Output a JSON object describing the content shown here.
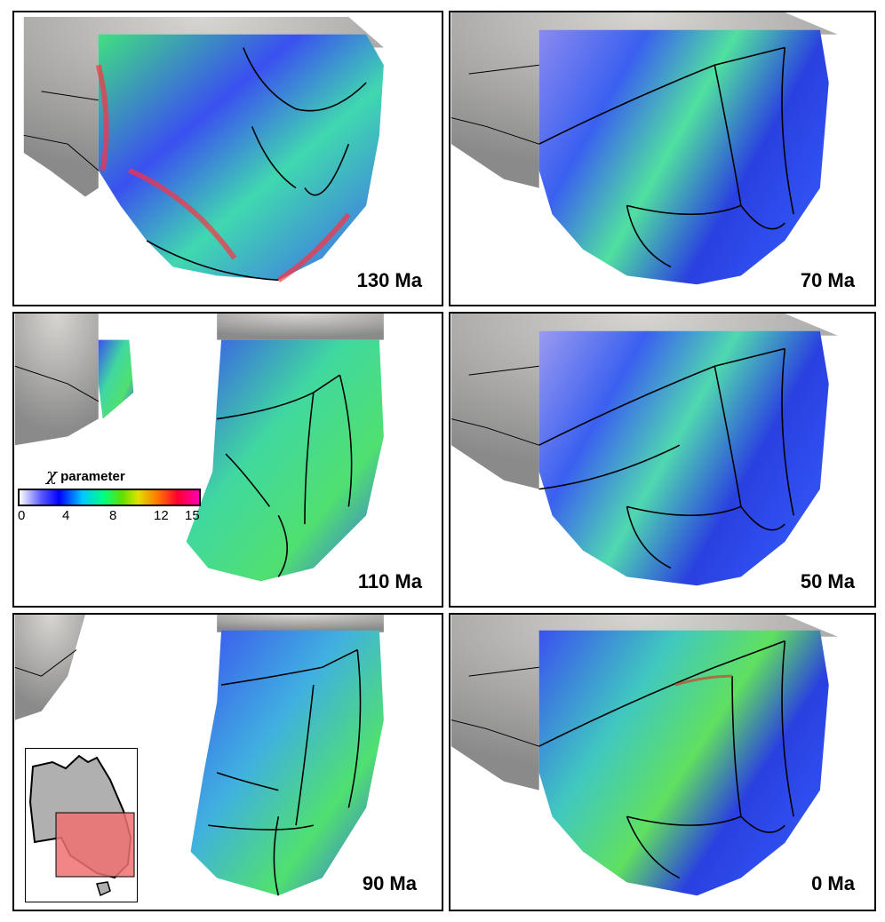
{
  "panels": [
    {
      "id": "p130",
      "label": "130 Ma"
    },
    {
      "id": "p70",
      "label": "70 Ma"
    },
    {
      "id": "p110",
      "label": "110 Ma"
    },
    {
      "id": "p50",
      "label": "50 Ma"
    },
    {
      "id": "p90",
      "label": "90 Ma"
    },
    {
      "id": "p0",
      "label": "0 Ma"
    }
  ],
  "legend": {
    "symbol": "χ",
    "title": "parameter",
    "ticks": [
      "0",
      "4",
      "8",
      "12",
      "15"
    ],
    "range": [
      0,
      15
    ]
  },
  "colors": {
    "land_gray": "#a8a8a8",
    "low_chi": "#3a3af0",
    "mid_chi": "#40e090",
    "high_chi": "#ff3040",
    "inset_highlight": "#f07070",
    "rivers": "#000000"
  }
}
